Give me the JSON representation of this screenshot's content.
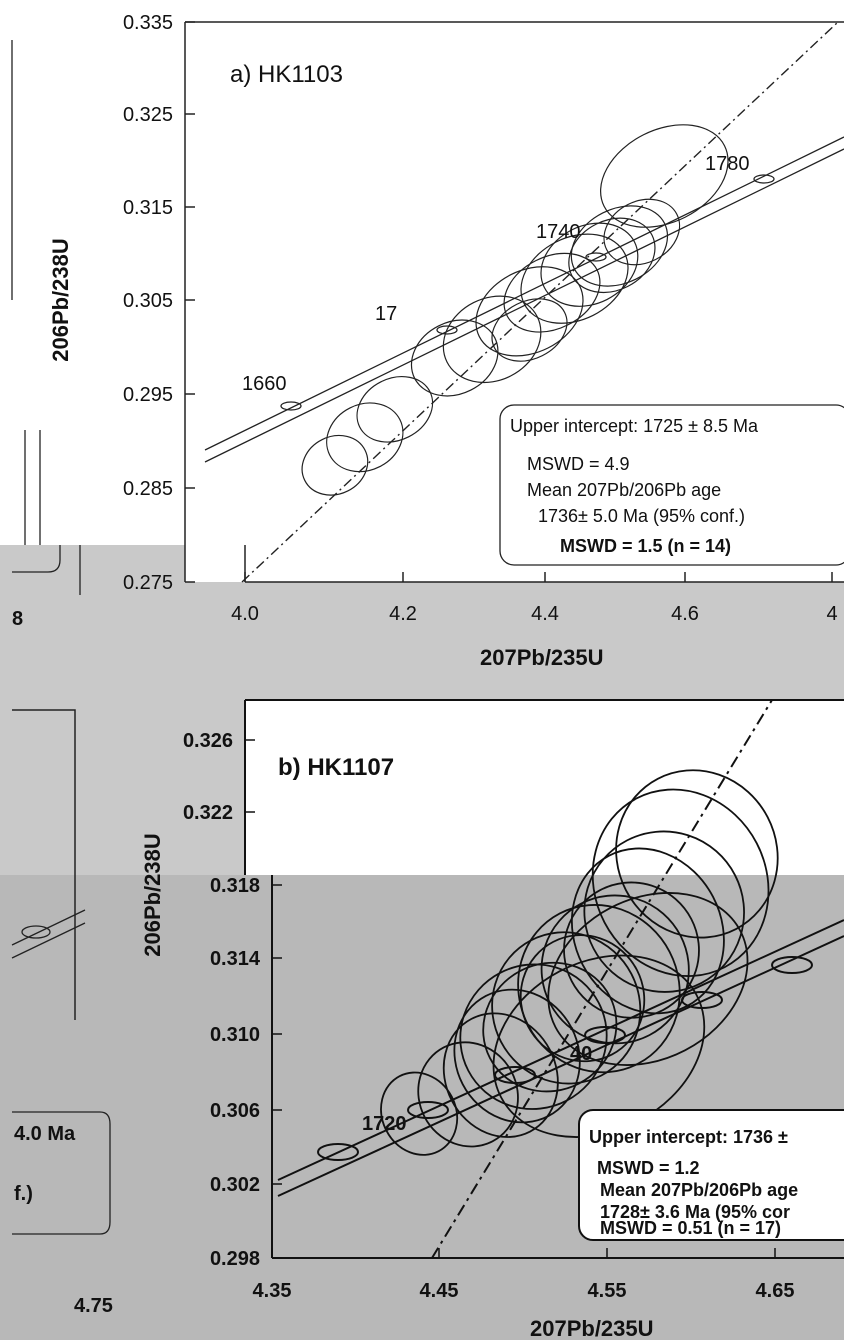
{
  "chart_data": [
    {
      "type": "scatter",
      "title": "a) HK1103",
      "xlabel": "207Pb/235U",
      "ylabel": "206Pb/238U",
      "xlim": [
        4.0,
        4.8
      ],
      "ylim": [
        0.275,
        0.335
      ],
      "xticks": [
        "4.0",
        "4.2",
        "4.4",
        "4.6",
        "4"
      ],
      "yticks": [
        "0.335",
        "0.325",
        "0.315",
        "0.305",
        "0.295",
        "0.285",
        "0.275"
      ],
      "concordia_ages": [
        "1660",
        "17",
        "1740",
        "1780"
      ],
      "info": {
        "upper_intercept": "Upper intercept: 1725 ± 8.5 Ma",
        "mswd1": "MSWD = 4.9",
        "mean_label": "Mean 207Pb/206Pb age",
        "mean_value": "1736± 5.0 Ma (95% conf.)",
        "mswd2": "MSWD = 1.5 (n = 14)"
      },
      "ellipses": [
        {
          "x": 4.12,
          "y": 0.2875,
          "rx": 0.06,
          "ry": 0.0028
        },
        {
          "x": 4.16,
          "y": 0.2905,
          "rx": 0.07,
          "ry": 0.0032
        },
        {
          "x": 4.2,
          "y": 0.2935,
          "rx": 0.07,
          "ry": 0.003
        },
        {
          "x": 4.28,
          "y": 0.299,
          "rx": 0.08,
          "ry": 0.0035
        },
        {
          "x": 4.33,
          "y": 0.301,
          "rx": 0.09,
          "ry": 0.004
        },
        {
          "x": 4.38,
          "y": 0.304,
          "rx": 0.1,
          "ry": 0.004
        },
        {
          "x": 4.41,
          "y": 0.306,
          "rx": 0.09,
          "ry": 0.0035
        },
        {
          "x": 4.44,
          "y": 0.3075,
          "rx": 0.1,
          "ry": 0.004
        },
        {
          "x": 4.46,
          "y": 0.309,
          "rx": 0.09,
          "ry": 0.0038
        },
        {
          "x": 4.49,
          "y": 0.31,
          "rx": 0.08,
          "ry": 0.0034
        },
        {
          "x": 4.5,
          "y": 0.311,
          "rx": 0.09,
          "ry": 0.0036
        },
        {
          "x": 4.53,
          "y": 0.3125,
          "rx": 0.07,
          "ry": 0.003
        },
        {
          "x": 4.56,
          "y": 0.3185,
          "rx": 0.12,
          "ry": 0.0045
        },
        {
          "x": 4.38,
          "y": 0.302,
          "rx": 0.07,
          "ry": 0.0028
        }
      ]
    },
    {
      "type": "scatter",
      "title": "b) HK1107",
      "xlabel": "207Pb/235U",
      "ylabel": "206Pb/238U",
      "xlim": [
        4.35,
        4.7
      ],
      "ylim": [
        0.298,
        0.327
      ],
      "xticks": [
        "4.35",
        "4.45",
        "4.55",
        "4.65"
      ],
      "yticks": [
        "0.326",
        "0.322",
        "0.318",
        "0.314",
        "0.310",
        "0.306",
        "0.302",
        "0.298"
      ],
      "concordia_ages": [
        "1720",
        "40"
      ],
      "info": {
        "upper_intercept": "Upper intercept: 1736 ±",
        "mswd1": "MSWD = 1.2",
        "mean_label": "Mean 207Pb/206Pb age",
        "mean_value": "1728± 3.6 Ma (95% cor",
        "mswd2": "MSWD = 0.51 (n = 17)"
      },
      "ellipses": [
        {
          "x": 4.44,
          "y": 0.3055,
          "rx": 0.03,
          "ry": 0.002
        },
        {
          "x": 4.47,
          "y": 0.3065,
          "rx": 0.04,
          "ry": 0.0025
        },
        {
          "x": 4.49,
          "y": 0.3075,
          "rx": 0.045,
          "ry": 0.003
        },
        {
          "x": 4.5,
          "y": 0.3085,
          "rx": 0.05,
          "ry": 0.0032
        },
        {
          "x": 4.51,
          "y": 0.3095,
          "rx": 0.06,
          "ry": 0.0034
        },
        {
          "x": 4.52,
          "y": 0.31,
          "rx": 0.055,
          "ry": 0.003
        },
        {
          "x": 4.53,
          "y": 0.311,
          "rx": 0.06,
          "ry": 0.0036
        },
        {
          "x": 4.54,
          "y": 0.3115,
          "rx": 0.05,
          "ry": 0.003
        },
        {
          "x": 4.55,
          "y": 0.312,
          "rx": 0.065,
          "ry": 0.004
        },
        {
          "x": 4.56,
          "y": 0.313,
          "rx": 0.06,
          "ry": 0.0035
        },
        {
          "x": 4.57,
          "y": 0.314,
          "rx": 0.055,
          "ry": 0.0032
        },
        {
          "x": 4.58,
          "y": 0.315,
          "rx": 0.06,
          "ry": 0.004
        },
        {
          "x": 4.59,
          "y": 0.316,
          "rx": 0.065,
          "ry": 0.0038
        },
        {
          "x": 4.6,
          "y": 0.3175,
          "rx": 0.07,
          "ry": 0.0045
        },
        {
          "x": 4.61,
          "y": 0.319,
          "rx": 0.065,
          "ry": 0.004
        },
        {
          "x": 4.55,
          "y": 0.309,
          "rx": 0.09,
          "ry": 0.004
        },
        {
          "x": 4.58,
          "y": 0.3125,
          "rx": 0.085,
          "ry": 0.0038
        }
      ]
    }
  ],
  "fragments": {
    "left_x_tick_top": "8",
    "left_info_ma": "4.0 Ma",
    "left_info_conf": "f.)",
    "left_x_tick_bottom": "4.75"
  }
}
